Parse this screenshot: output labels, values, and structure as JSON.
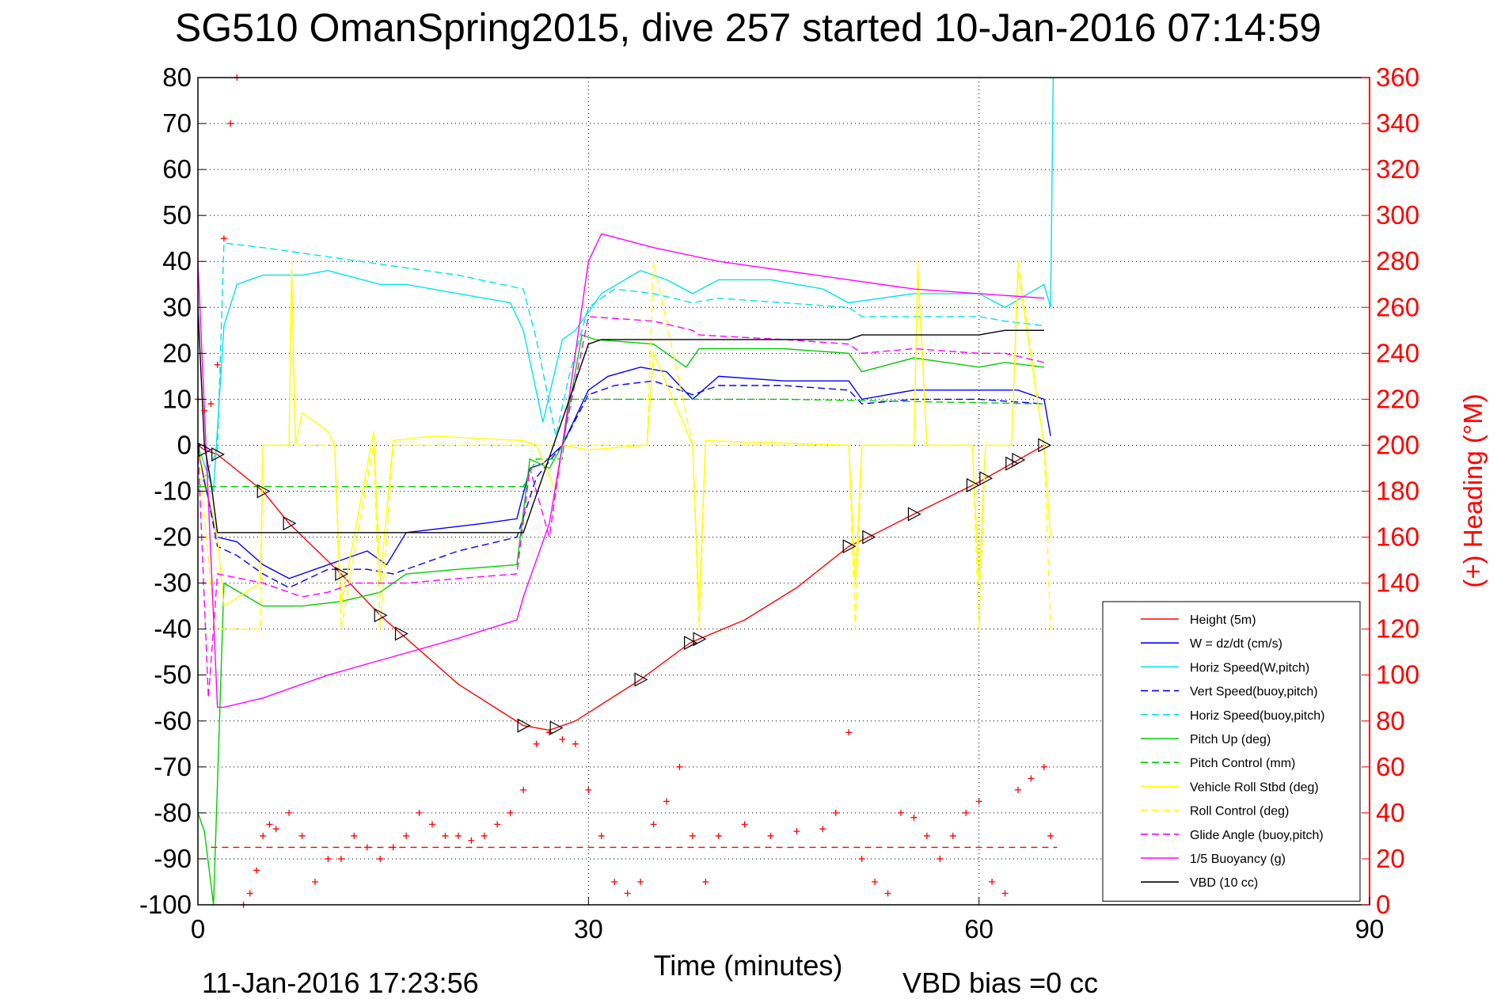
{
  "chart_data": {
    "type": "line",
    "title": "SG510 OmanSpring2015, dive 257 started 10-Jan-2016 07:14:59",
    "xlabel": "Time (minutes)",
    "ylabel_right": "(+) Heading (°M)",
    "xlim": [
      0,
      90
    ],
    "ylim": [
      -100,
      80
    ],
    "ylim_right": [
      0,
      360
    ],
    "x_ticks": [
      "0",
      "30",
      "60",
      "90"
    ],
    "y_ticks": [
      "80",
      "70",
      "60",
      "50",
      "40",
      "30",
      "20",
      "10",
      "0",
      "-10",
      "-20",
      "-30",
      "-40",
      "-50",
      "-60",
      "-70",
      "-80",
      "-90",
      "-100"
    ],
    "y_ticks_right": [
      "360",
      "340",
      "320",
      "300",
      "280",
      "260",
      "240",
      "220",
      "200",
      "180",
      "160",
      "140",
      "120",
      "100",
      "80",
      "60",
      "40",
      "20",
      "0"
    ],
    "grid": true,
    "legend_position": "bottom-right",
    "footer_left": "11-Jan-2016 17:23:56",
    "footer_right": "VBD bias =0 cc",
    "series": [
      {
        "name": "Height (5m)",
        "color": "#ff0000",
        "style": "solid",
        "x": [
          0,
          0.5,
          1.5,
          5,
          7,
          11,
          14,
          15.6,
          20,
          25,
          27,
          29,
          34,
          37.8,
          42,
          46,
          50,
          51.5,
          55,
          60,
          62.5,
          65
        ],
        "y": [
          0,
          -1,
          -2,
          -10,
          -17,
          -28,
          -37,
          -41,
          -52,
          -61,
          -62,
          -60,
          -51,
          -43,
          -38,
          -31,
          -22,
          -20,
          -15,
          -8,
          -4,
          0
        ]
      },
      {
        "name": "W = dz/dt (cm/s)",
        "color": "#0000ff",
        "style": "solid",
        "x": [
          0,
          0.5,
          1.5,
          3,
          5,
          7,
          9,
          11,
          13,
          14.5,
          16,
          19,
          22,
          24.5,
          25.5,
          26.5,
          28,
          30,
          31.5,
          34,
          36,
          38,
          40,
          45,
          50,
          51,
          55,
          60,
          63,
          65,
          65.5
        ],
        "y": [
          0,
          -8,
          -20,
          -21,
          -26,
          -29,
          -27,
          -25,
          -23,
          -26,
          -19,
          -18,
          -17,
          -16,
          -5,
          -4,
          0,
          12,
          15,
          17,
          16,
          10,
          15,
          14,
          14,
          10,
          12,
          12,
          12,
          10,
          2
        ]
      },
      {
        "name": "Horiz Speed(W,pitch)",
        "color": "#00e5e5",
        "style": "solid",
        "x": [
          0,
          1.2,
          2,
          3,
          5,
          8,
          10,
          14,
          16,
          20,
          24,
          25,
          26.5,
          28,
          29,
          31,
          34,
          36,
          38,
          40,
          44,
          48,
          50,
          55,
          60,
          62,
          65,
          65.5,
          65.7
        ],
        "y": [
          0,
          -10,
          26,
          35,
          37,
          37,
          38,
          35,
          35,
          33,
          31,
          25,
          5,
          23,
          25,
          33,
          38,
          36,
          33,
          36,
          36,
          34,
          31,
          33,
          33,
          30,
          35,
          30,
          80
        ]
      },
      {
        "name": "Vert Speed(buoy,pitch)",
        "color": "#0000ff",
        "style": "dashed",
        "x": [
          0,
          1.5,
          3,
          5,
          7,
          10,
          13,
          15,
          20,
          24.5,
          26,
          28,
          30,
          32,
          35,
          38,
          40,
          45,
          50,
          51,
          55,
          60,
          65
        ],
        "y": [
          0,
          -22,
          -24,
          -28,
          -31,
          -27,
          -27,
          -28,
          -23,
          -20,
          -7,
          0,
          11,
          13,
          14,
          11,
          13,
          13,
          12,
          9,
          10,
          10,
          9
        ]
      },
      {
        "name": "Horiz Speed(buoy,pitch)",
        "color": "#00e5e5",
        "style": "dashed",
        "x": [
          0,
          1.5,
          2,
          5,
          10,
          15,
          20,
          25,
          26,
          27.5,
          28.5,
          30,
          32,
          35,
          38,
          40,
          45,
          50,
          51,
          55,
          60,
          62,
          65
        ],
        "y": [
          -10,
          -1,
          44,
          43,
          41,
          39,
          37,
          34,
          23,
          2,
          15,
          30,
          34,
          33,
          31,
          32,
          31,
          30,
          28,
          28,
          28,
          27,
          26
        ]
      },
      {
        "name": "Pitch Up (deg)",
        "color": "#00cc00",
        "style": "solid",
        "x": [
          0,
          0.5,
          1.2,
          2,
          5,
          8,
          11,
          14,
          16,
          20,
          24.5,
          25.5,
          27,
          28,
          29.5,
          30.5,
          35,
          37.5,
          38.5,
          45,
          50,
          51,
          55,
          60,
          62,
          65
        ],
        "y": [
          -80,
          -84,
          -100,
          -30,
          -35,
          -35,
          -34,
          -32,
          -28,
          -27,
          -26,
          -3,
          -5,
          0,
          24,
          23,
          22,
          17,
          21,
          21,
          20,
          16,
          19,
          17,
          18,
          17
        ]
      },
      {
        "name": "Pitch Control (mm)",
        "color": "#00cc00",
        "style": "dashed",
        "x": [
          0,
          1,
          1.5,
          5,
          10,
          15,
          20,
          25,
          26,
          28,
          28.5,
          29,
          35,
          45,
          55,
          65
        ],
        "y": [
          -9,
          -9,
          -9,
          -9,
          -9,
          -9,
          -9,
          -9,
          -3,
          -3,
          10,
          10,
          10,
          10,
          9.5,
          9
        ]
      },
      {
        "name": "Vehicle Roll Stbd (deg)",
        "color": "#ffff00",
        "style": "solid",
        "x": [
          0,
          1.5,
          2,
          4.8,
          5,
          7,
          7.2,
          7.5,
          8,
          10,
          10.5,
          11,
          13.5,
          14,
          15,
          18,
          25,
          26,
          27.5,
          28,
          30,
          34.5,
          35,
          38,
          38.5,
          39,
          50,
          50.5,
          51,
          55,
          55.3,
          56,
          59.5,
          60,
          60.5,
          62.5,
          63,
          65,
          65.5
        ],
        "y": [
          0,
          -20,
          -35,
          -30,
          0,
          0,
          37,
          0,
          7,
          3,
          0,
          -35,
          3,
          -30,
          1,
          2,
          1,
          0,
          -10,
          0,
          -1,
          0,
          20,
          0,
          -35,
          1,
          0,
          -30,
          0,
          0,
          38,
          0,
          0,
          -30,
          0,
          0,
          38,
          0,
          -20
        ]
      },
      {
        "name": "Roll Control (deg)",
        "color": "#ffff00",
        "style": "dashed",
        "x": [
          0,
          1.3,
          2,
          4.8,
          5,
          7,
          7.2,
          7.5,
          8,
          10.5,
          11,
          13.5,
          14,
          15,
          18,
          25,
          26,
          28,
          30,
          34.5,
          35,
          38,
          38.5,
          39,
          50,
          50.5,
          51,
          55,
          55.3,
          56,
          59.5,
          60,
          60.5,
          62.5,
          63,
          65,
          65.5
        ],
        "y": [
          0,
          -40,
          -40,
          -40,
          0,
          0,
          40,
          0,
          0,
          0,
          -40,
          0,
          -40,
          0,
          0,
          0,
          0,
          0,
          0,
          0,
          40,
          0,
          -40,
          0,
          0,
          -40,
          0,
          0,
          40,
          0,
          0,
          -40,
          0,
          0,
          40,
          0,
          -40
        ]
      },
      {
        "name": "Glide Angle (buoy,pitch)",
        "color": "#ff00ff",
        "style": "dashed",
        "x": [
          0,
          0.8,
          1.5,
          5,
          8,
          10,
          12,
          14,
          16,
          20,
          24.5,
          25.5,
          27,
          28,
          30,
          35,
          38,
          38.5,
          45,
          50,
          51,
          55,
          60,
          62,
          65
        ],
        "y": [
          0,
          -55,
          -28,
          -30,
          -33,
          -32,
          -30,
          -30,
          -30,
          -29,
          -28,
          -5,
          -20,
          0,
          28,
          27,
          25,
          24,
          23,
          22,
          20,
          21,
          20,
          20,
          18
        ]
      },
      {
        "name": "1/5 Buoyancy (g)",
        "color": "#ff00ff",
        "style": "solid",
        "x": [
          0,
          1.5,
          2,
          5,
          10,
          15,
          20,
          24.5,
          25,
          27,
          28,
          30,
          31,
          35,
          40,
          45,
          50,
          55,
          60,
          65
        ],
        "y": [
          40,
          -57,
          -57,
          -55,
          -50,
          -46,
          -42,
          -38,
          -33,
          -17,
          0,
          40,
          46,
          43,
          40,
          38,
          36,
          34,
          33,
          32
        ]
      },
      {
        "name": "VBD (10 cc)",
        "color": "#000000",
        "style": "solid",
        "x": [
          0,
          0.5,
          1,
          1.5,
          5,
          10,
          15,
          20,
          25,
          30,
          31,
          35,
          40,
          50,
          51,
          55,
          60,
          62,
          65
        ],
        "y": [
          30,
          0,
          -8,
          -19,
          -19,
          -19,
          -19,
          -19,
          -19,
          22,
          23,
          23,
          23,
          23,
          24,
          24,
          24,
          25,
          25
        ]
      },
      {
        "name": "(+) Heading (°M)",
        "axis": "right",
        "color": "#ff0000",
        "marker": "+",
        "x": [
          0,
          0.5,
          1,
          1.5,
          2,
          2.5,
          3,
          3.5,
          4,
          4.5,
          5,
          5.5,
          6,
          7,
          8,
          9,
          10,
          11,
          12,
          13,
          14,
          15,
          16,
          17,
          18,
          19,
          20,
          21,
          22,
          23,
          24,
          25,
          26,
          27,
          28,
          29,
          30,
          31,
          32,
          33,
          34,
          35,
          36,
          37,
          38,
          39,
          40,
          42,
          44,
          46,
          48,
          49,
          50,
          51,
          52,
          53,
          54,
          55,
          56,
          57,
          58,
          59,
          60,
          61,
          62,
          63,
          64,
          65,
          65.5
        ],
        "y": [
          220,
          215,
          218,
          235,
          290,
          340,
          360,
          0,
          5,
          15,
          30,
          35,
          33,
          40,
          30,
          10,
          20,
          20,
          30,
          25,
          20,
          25,
          30,
          40,
          35,
          30,
          30,
          28,
          30,
          35,
          40,
          50,
          70,
          75,
          72,
          70,
          50,
          30,
          10,
          5,
          10,
          35,
          45,
          60,
          30,
          10,
          30,
          35,
          30,
          32,
          33,
          40,
          75,
          20,
          10,
          5,
          40,
          38,
          30,
          20,
          30,
          40,
          45,
          10,
          5,
          50,
          55,
          60,
          30
        ]
      }
    ],
    "reference_lines": [
      {
        "axis": "right",
        "y": 25,
        "color": "#ff0000",
        "style": "dashed",
        "x_range": [
          1,
          66
        ]
      }
    ],
    "markers": {
      "series": "Height (5m)",
      "shape": "triangle",
      "color": "#000000",
      "x": [
        0.5,
        1.5,
        5,
        7,
        11,
        14,
        15.6,
        25,
        27.5,
        34,
        37.8,
        38.5,
        50,
        51.5,
        55,
        59.5,
        60.5,
        62.5,
        63,
        65
      ]
    }
  }
}
